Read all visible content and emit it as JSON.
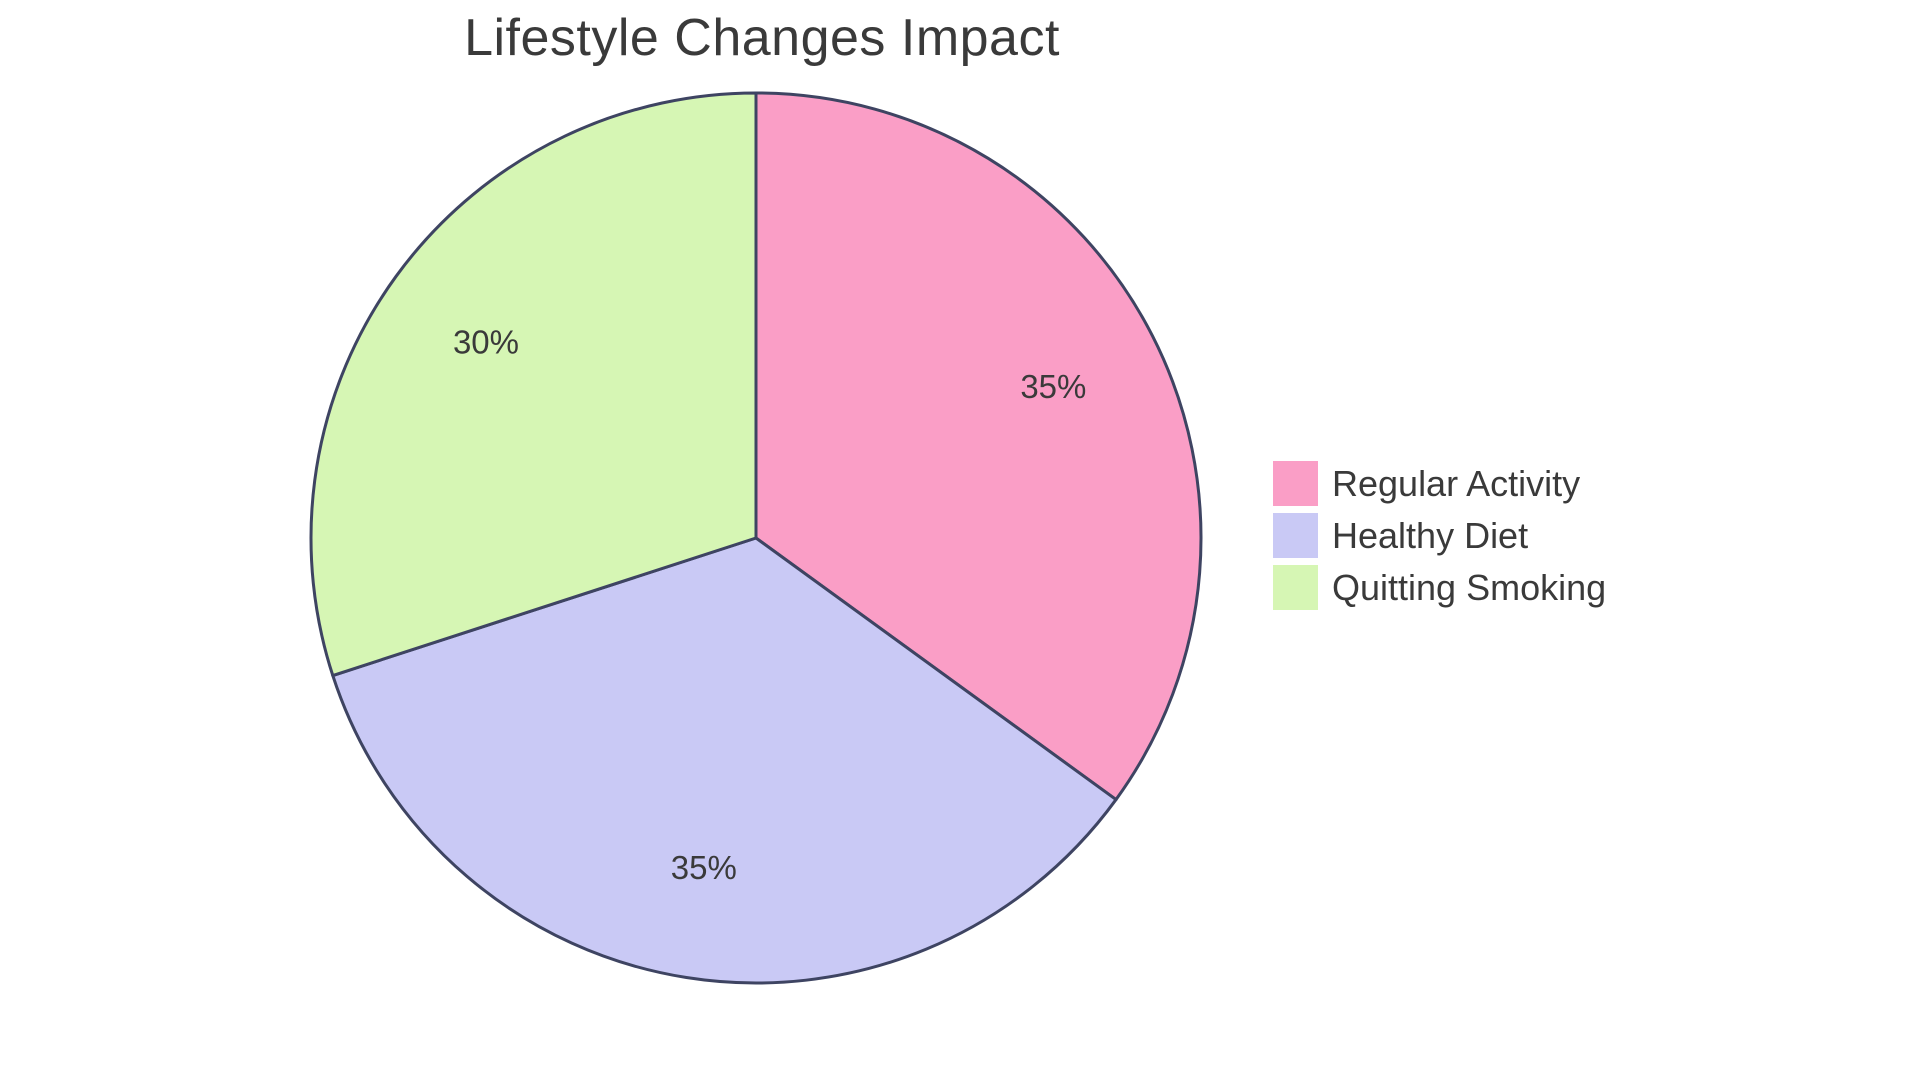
{
  "page": {
    "background_color": "#ffffff"
  },
  "chart_data": {
    "type": "pie",
    "title": "Lifestyle Changes Impact",
    "title_color": "#3a3a3a",
    "label_color": "#3a3a3a",
    "border_color": "#3e4462",
    "legend_position": "right",
    "start_angle_deg": 0,
    "direction": "clockwise",
    "categories": [
      "Regular Activity",
      "Healthy Diet",
      "Quitting Smoking"
    ],
    "values": [
      35,
      35,
      30
    ],
    "slices": [
      {
        "label": "Regular Activity",
        "value": 35,
        "percent_label": "35%",
        "color": "#fa9ec6"
      },
      {
        "label": "Healthy Diet",
        "value": 35,
        "percent_label": "35%",
        "color": "#c9c9f5"
      },
      {
        "label": "Quitting Smoking",
        "value": 30,
        "percent_label": "30%",
        "color": "#d6f6b4"
      }
    ]
  }
}
